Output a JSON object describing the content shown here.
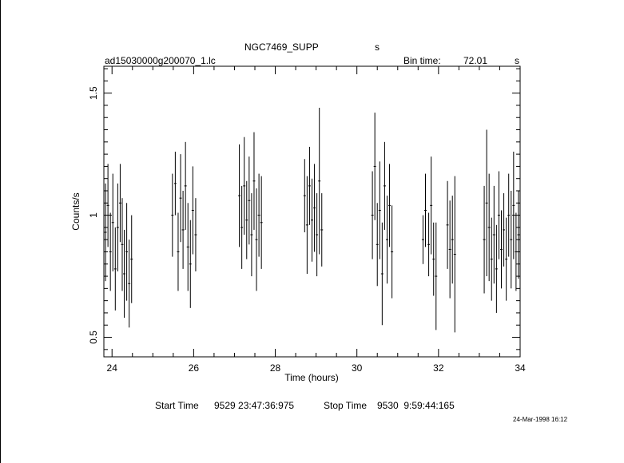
{
  "header": {
    "object": "NGC7469_SUPP",
    "unit_s": "s",
    "file": "ad15030000g200070_1.lc",
    "bin_time_label": "Bin time:",
    "bin_time_value": "72.01",
    "bin_time_unit": "s"
  },
  "footer": {
    "start_label": "Start Time",
    "start_value": "9529 23:47:36:975",
    "stop_label": "Stop Time",
    "stop_value": "9530  9:59:44:165",
    "date": "24-Mar-1998 16:12"
  },
  "chart_data": {
    "type": "scatter",
    "title": "NGC7469_SUPP",
    "xlabel": "Time (hours)",
    "ylabel": "Counts/s",
    "xlim": [
      23.8,
      34.0
    ],
    "ylim": [
      0.42,
      1.61
    ],
    "xticks": [
      24,
      26,
      28,
      30,
      32,
      34
    ],
    "xtick_labels": [
      "24",
      "26",
      "28",
      "30",
      "32",
      "34"
    ],
    "yticks": [
      0.5,
      1.0,
      1.5
    ],
    "ytick_labels": [
      "0.5",
      "1",
      "1.5"
    ],
    "grid": false,
    "legend": "none",
    "error_bars": true,
    "series": [
      {
        "points": [
          {
            "x": 23.84,
            "y": 0.93,
            "e": 0.2
          },
          {
            "x": 23.9,
            "y": 1.04,
            "e": 0.17
          },
          {
            "x": 23.96,
            "y": 0.85,
            "e": 0.16
          },
          {
            "x": 24.02,
            "y": 0.97,
            "e": 0.2
          },
          {
            "x": 24.08,
            "y": 0.78,
            "e": 0.17
          },
          {
            "x": 24.14,
            "y": 0.95,
            "e": 0.18
          },
          {
            "x": 24.2,
            "y": 1.05,
            "e": 0.16
          },
          {
            "x": 24.25,
            "y": 0.88,
            "e": 0.19
          },
          {
            "x": 24.3,
            "y": 0.76,
            "e": 0.18
          },
          {
            "x": 24.36,
            "y": 0.85,
            "e": 0.2
          },
          {
            "x": 24.42,
            "y": 0.72,
            "e": 0.18
          },
          {
            "x": 24.48,
            "y": 0.82,
            "e": 0.18
          },
          {
            "x": 25.48,
            "y": 1.0,
            "e": 0.17
          },
          {
            "x": 25.55,
            "y": 1.13,
            "e": 0.13
          },
          {
            "x": 25.62,
            "y": 0.85,
            "e": 0.16
          },
          {
            "x": 25.68,
            "y": 1.07,
            "e": 0.18
          },
          {
            "x": 25.74,
            "y": 0.94,
            "e": 0.16
          },
          {
            "x": 25.8,
            "y": 1.12,
            "e": 0.18
          },
          {
            "x": 25.86,
            "y": 0.87,
            "e": 0.18
          },
          {
            "x": 25.92,
            "y": 0.8,
            "e": 0.18
          },
          {
            "x": 25.98,
            "y": 1.02,
            "e": 0.18
          },
          {
            "x": 26.05,
            "y": 0.92,
            "e": 0.15
          },
          {
            "x": 27.12,
            "y": 1.08,
            "e": 0.21
          },
          {
            "x": 27.18,
            "y": 0.95,
            "e": 0.17
          },
          {
            "x": 27.24,
            "y": 1.12,
            "e": 0.2
          },
          {
            "x": 27.3,
            "y": 0.98,
            "e": 0.16
          },
          {
            "x": 27.36,
            "y": 1.06,
            "e": 0.18
          },
          {
            "x": 27.42,
            "y": 0.92,
            "e": 0.17
          },
          {
            "x": 27.48,
            "y": 1.14,
            "e": 0.2
          },
          {
            "x": 27.54,
            "y": 0.9,
            "e": 0.21
          },
          {
            "x": 27.6,
            "y": 1.0,
            "e": 0.17
          },
          {
            "x": 27.66,
            "y": 0.97,
            "e": 0.19
          },
          {
            "x": 28.72,
            "y": 1.08,
            "e": 0.15
          },
          {
            "x": 28.78,
            "y": 0.96,
            "e": 0.2
          },
          {
            "x": 28.84,
            "y": 1.12,
            "e": 0.16
          },
          {
            "x": 28.9,
            "y": 0.98,
            "e": 0.17
          },
          {
            "x": 28.96,
            "y": 1.03,
            "e": 0.18
          },
          {
            "x": 29.02,
            "y": 0.92,
            "e": 0.17
          },
          {
            "x": 29.08,
            "y": 1.14,
            "e": 0.3
          },
          {
            "x": 29.14,
            "y": 0.94,
            "e": 0.15
          },
          {
            "x": 30.38,
            "y": 1.0,
            "e": 0.18
          },
          {
            "x": 30.44,
            "y": 1.2,
            "e": 0.22
          },
          {
            "x": 30.5,
            "y": 0.88,
            "e": 0.17
          },
          {
            "x": 30.56,
            "y": 1.02,
            "e": 0.2
          },
          {
            "x": 30.62,
            "y": 0.76,
            "e": 0.21
          },
          {
            "x": 30.68,
            "y": 1.12,
            "e": 0.18
          },
          {
            "x": 30.74,
            "y": 0.9,
            "e": 0.18
          },
          {
            "x": 30.8,
            "y": 1.04,
            "e": 0.17
          },
          {
            "x": 30.86,
            "y": 0.85,
            "e": 0.19
          },
          {
            "x": 31.62,
            "y": 0.9,
            "e": 0.1
          },
          {
            "x": 31.68,
            "y": 1.02,
            "e": 0.15
          },
          {
            "x": 31.76,
            "y": 0.88,
            "e": 0.13
          },
          {
            "x": 31.82,
            "y": 1.04,
            "e": 0.2
          },
          {
            "x": 31.88,
            "y": 0.82,
            "e": 0.15
          },
          {
            "x": 31.94,
            "y": 0.75,
            "e": 0.22
          },
          {
            "x": 32.22,
            "y": 0.96,
            "e": 0.18
          },
          {
            "x": 32.28,
            "y": 0.86,
            "e": 0.2
          },
          {
            "x": 32.34,
            "y": 0.9,
            "e": 0.18
          },
          {
            "x": 32.4,
            "y": 0.84,
            "e": 0.32
          },
          {
            "x": 33.12,
            "y": 0.9,
            "e": 0.22
          },
          {
            "x": 33.18,
            "y": 1.05,
            "e": 0.3
          },
          {
            "x": 33.24,
            "y": 0.95,
            "e": 0.22
          },
          {
            "x": 33.3,
            "y": 0.82,
            "e": 0.17
          },
          {
            "x": 33.36,
            "y": 0.92,
            "e": 0.2
          },
          {
            "x": 33.42,
            "y": 0.78,
            "e": 0.18
          },
          {
            "x": 33.48,
            "y": 1.0,
            "e": 0.18
          },
          {
            "x": 33.54,
            "y": 0.86,
            "e": 0.16
          },
          {
            "x": 33.6,
            "y": 0.94,
            "e": 0.15
          },
          {
            "x": 33.66,
            "y": 0.82,
            "e": 0.17
          },
          {
            "x": 33.72,
            "y": 1.0,
            "e": 0.17
          },
          {
            "x": 33.78,
            "y": 0.9,
            "e": 0.2
          },
          {
            "x": 33.84,
            "y": 1.04,
            "e": 0.22
          },
          {
            "x": 33.9,
            "y": 0.85,
            "e": 0.16
          },
          {
            "x": 33.96,
            "y": 0.92,
            "e": 0.18
          }
        ]
      }
    ]
  }
}
